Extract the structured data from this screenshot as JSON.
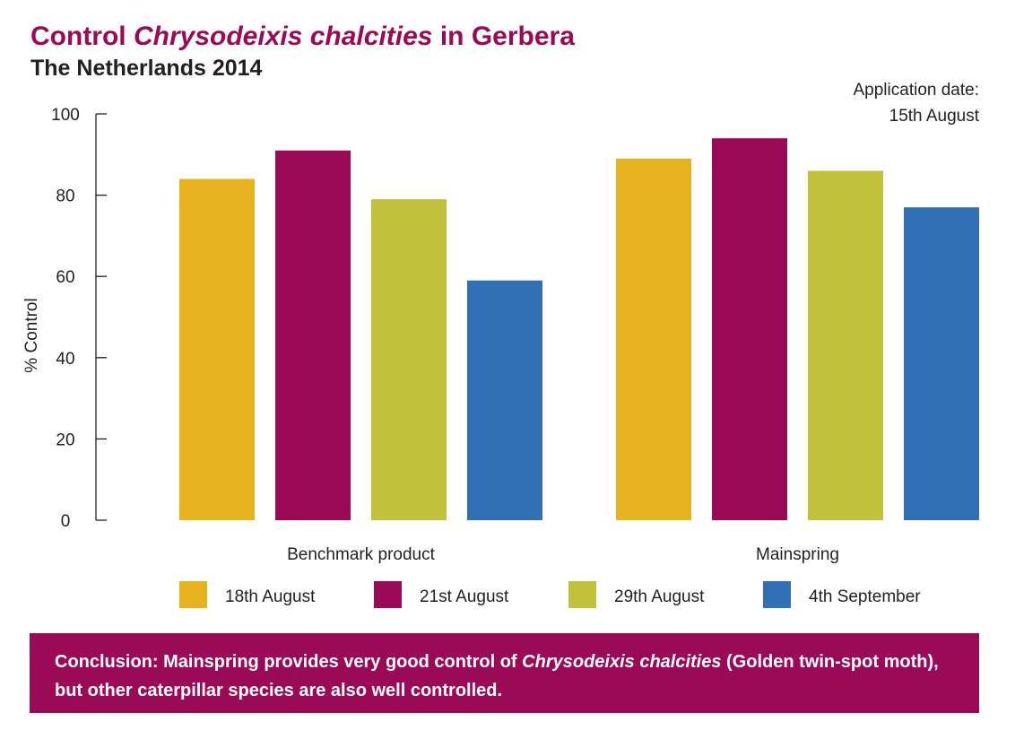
{
  "header": {
    "title_prefix": "Control ",
    "title_species": "Chrysodeixis chalcities",
    "title_suffix": " in Gerbera",
    "subtitle": "The Netherlands 2014",
    "note_line1": "Application date:",
    "note_line2": "15th August"
  },
  "colors": {
    "brand": "#9b0a56",
    "series": [
      "#e6b31e",
      "#9b0a56",
      "#c0c23c",
      "#3270b6"
    ]
  },
  "chart_data": {
    "type": "bar",
    "title": "Control Chrysodeixis chalcities in Gerbera",
    "subtitle": "The Netherlands 2014",
    "ylabel": "% Control",
    "xlabel": "",
    "ylim": [
      0,
      100
    ],
    "yticks": [
      0,
      20,
      40,
      60,
      80,
      100
    ],
    "categories": [
      "Benchmark product",
      "Mainspring"
    ],
    "series": [
      {
        "name": "18th August",
        "values": [
          84,
          89
        ]
      },
      {
        "name": "21st August",
        "values": [
          91,
          94
        ]
      },
      {
        "name": "29th August",
        "values": [
          79,
          86
        ]
      },
      {
        "name": "4th September",
        "values": [
          59,
          77
        ]
      }
    ],
    "legend_position": "bottom",
    "grid": false
  },
  "conclusion": {
    "part1": "Conclusion: Mainspring provides very good control of ",
    "species": "Chrysodeixis chalcities",
    "part2": " (Golden twin-spot moth), but other caterpillar species are also well controlled."
  }
}
